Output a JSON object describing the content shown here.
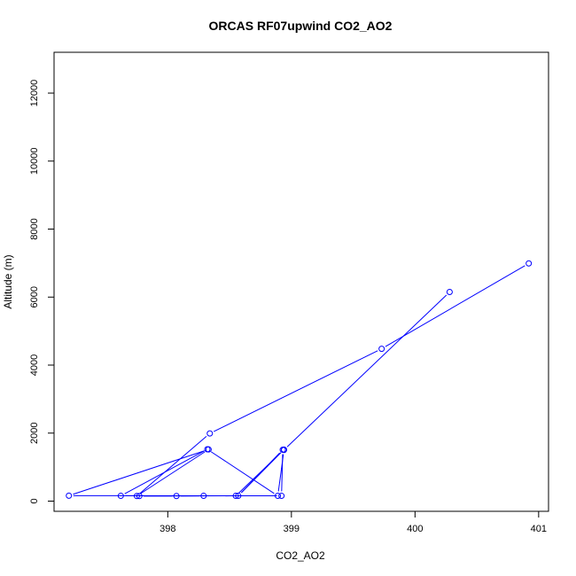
{
  "chart_data": {
    "type": "line",
    "title": "ORCAS RF07upwind CO2_AO2",
    "xlabel": "CO2_AO2",
    "ylabel": "Altitude (m)",
    "xlim": [
      397.08,
      401.08
    ],
    "ylim": [
      -300,
      13200
    ],
    "x_ticks": [
      398,
      399,
      400,
      401
    ],
    "y_ticks": [
      0,
      2000,
      4000,
      6000,
      8000,
      10000,
      12000
    ],
    "grid": false,
    "series": [
      {
        "color": "#0000ff",
        "marker": "open-circle",
        "points": [
          {
            "x": 400.92,
            "y": 6990
          },
          {
            "x": 399.73,
            "y": 4480
          },
          {
            "x": 398.34,
            "y": 1990
          },
          {
            "x": 397.75,
            "y": 150
          },
          {
            "x": 398.33,
            "y": 1520
          },
          {
            "x": 397.2,
            "y": 160
          },
          {
            "x": 398.92,
            "y": 155
          },
          {
            "x": 398.93,
            "y": 1510
          },
          {
            "x": 398.57,
            "y": 155
          },
          {
            "x": 398.94,
            "y": 1515
          },
          {
            "x": 398.55,
            "y": 155
          },
          {
            "x": 397.77,
            "y": 150
          },
          {
            "x": 398.07,
            "y": 150
          },
          {
            "x": 398.29,
            "y": 155
          },
          {
            "x": 397.62,
            "y": 155
          },
          {
            "x": 398.32,
            "y": 1525
          },
          {
            "x": 398.89,
            "y": 155
          },
          {
            "x": 398.94,
            "y": 1505
          },
          {
            "x": 400.28,
            "y": 6150
          }
        ]
      }
    ]
  }
}
